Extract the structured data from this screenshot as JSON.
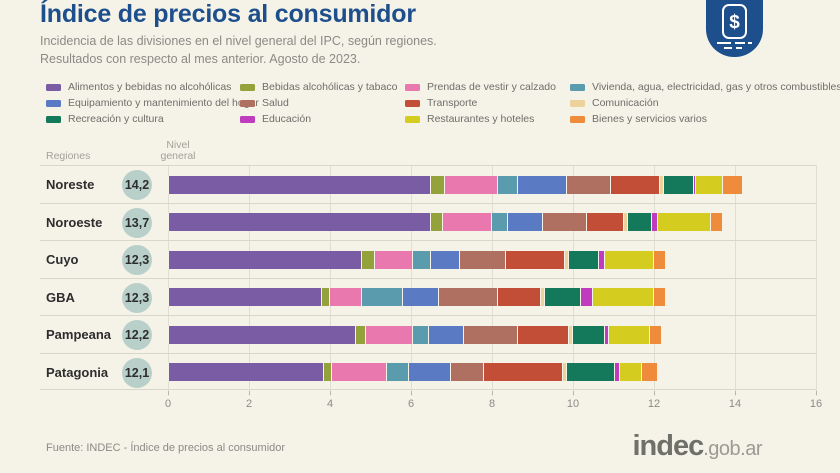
{
  "header": {
    "title": "Índice de precios al consumidor",
    "subtitle_line1": "Incidencia de las divisiones en el nivel general del IPC, según regiones.",
    "subtitle_line2": "Resultados con respecto al mes anterior. Agosto de 2023.",
    "badge_icon": "peso-price-tag-icon"
  },
  "colors": {
    "background": "#f5f2e8",
    "accent_blue": "#1d4f8c",
    "level_circle": "#b9d0ca",
    "gridline": "#e0ddd2",
    "row_separator": "#d9d6cb",
    "text_gray": "#8b8b85"
  },
  "chart_data": {
    "type": "bar",
    "orientation": "horizontal",
    "stacked": true,
    "title": "Índice de precios al consumidor",
    "xlabel": "",
    "ylabel": "",
    "xlim": [
      0,
      16
    ],
    "grid": true,
    "legend_position": "top",
    "row_header": {
      "regions_label": "Regiones",
      "level_label": "Nivel general"
    },
    "categories": [
      "Noreste",
      "Noroeste",
      "Cuyo",
      "GBA",
      "Pampeana",
      "Patagonia"
    ],
    "levels": [
      "14,2",
      "13,7",
      "12,3",
      "12,3",
      "12,2",
      "12,1"
    ],
    "x_axis_ticks": [
      0,
      2,
      4,
      6,
      8,
      10,
      12,
      14,
      16
    ],
    "series": [
      {
        "id": "alimentos",
        "name": "Alimentos y bebidas no alcohólicas",
        "color": "#7a5ca5",
        "values": [
          6.5,
          6.5,
          4.8,
          3.8,
          4.65,
          3.85
        ]
      },
      {
        "id": "bebidas",
        "name": "Bebidas alcohólicas y tabaco",
        "color": "#94a23c",
        "values": [
          0.35,
          0.3,
          0.3,
          0.2,
          0.25,
          0.2
        ]
      },
      {
        "id": "prendas",
        "name": "Prendas de vestir y calzado",
        "color": "#e878ae",
        "values": [
          1.3,
          1.2,
          0.95,
          0.8,
          1.15,
          1.35
        ]
      },
      {
        "id": "vivienda",
        "name": "Vivienda, agua, electricidad, gas y otros combustibles",
        "color": "#5a9cae",
        "values": [
          0.5,
          0.4,
          0.45,
          1.0,
          0.4,
          0.55
        ]
      },
      {
        "id": "equipamiento",
        "name": "Equipamiento y mantenimiento del hogar",
        "color": "#5a7ac4",
        "values": [
          1.2,
          0.85,
          0.7,
          0.9,
          0.85,
          1.05
        ]
      },
      {
        "id": "salud",
        "name": "Salud",
        "color": "#af7062",
        "values": [
          1.1,
          1.1,
          1.15,
          1.45,
          1.35,
          0.8
        ]
      },
      {
        "id": "transporte",
        "name": "Transporte",
        "color": "#c24e38",
        "values": [
          1.2,
          0.9,
          1.45,
          1.05,
          1.25,
          1.95
        ]
      },
      {
        "id": "comunicacion",
        "name": "Comunicación",
        "color": "#ecd29b",
        "values": [
          0.1,
          0.1,
          0.1,
          0.1,
          0.1,
          0.1
        ]
      },
      {
        "id": "recreacion",
        "name": "Recreación y cultura",
        "color": "#13795a",
        "values": [
          0.75,
          0.6,
          0.75,
          0.9,
          0.8,
          1.2
        ]
      },
      {
        "id": "educacion",
        "name": "Educación",
        "color": "#bf3cbf",
        "values": [
          0.05,
          0.15,
          0.15,
          0.3,
          0.1,
          0.1
        ]
      },
      {
        "id": "restaurantes",
        "name": "Restaurantes y hoteles",
        "color": "#d5cc20",
        "values": [
          0.65,
          1.3,
          1.2,
          1.5,
          1.0,
          0.55
        ]
      },
      {
        "id": "bienes",
        "name": "Bienes y servicios varios",
        "color": "#ef8c3b",
        "values": [
          0.5,
          0.3,
          0.3,
          0.3,
          0.3,
          0.4
        ]
      }
    ],
    "legend_column_ids": [
      [
        "alimentos",
        "equipamiento",
        "recreacion"
      ],
      [
        "bebidas",
        "salud",
        "educacion"
      ],
      [
        "prendas",
        "transporte",
        "restaurantes"
      ],
      [
        "vivienda",
        "comunicacion",
        "bienes"
      ]
    ]
  },
  "footer": {
    "source": "Fuente: INDEC - Índice de precios al consumidor",
    "logo_main": "indec",
    "logo_suffix": ".gob.ar"
  }
}
